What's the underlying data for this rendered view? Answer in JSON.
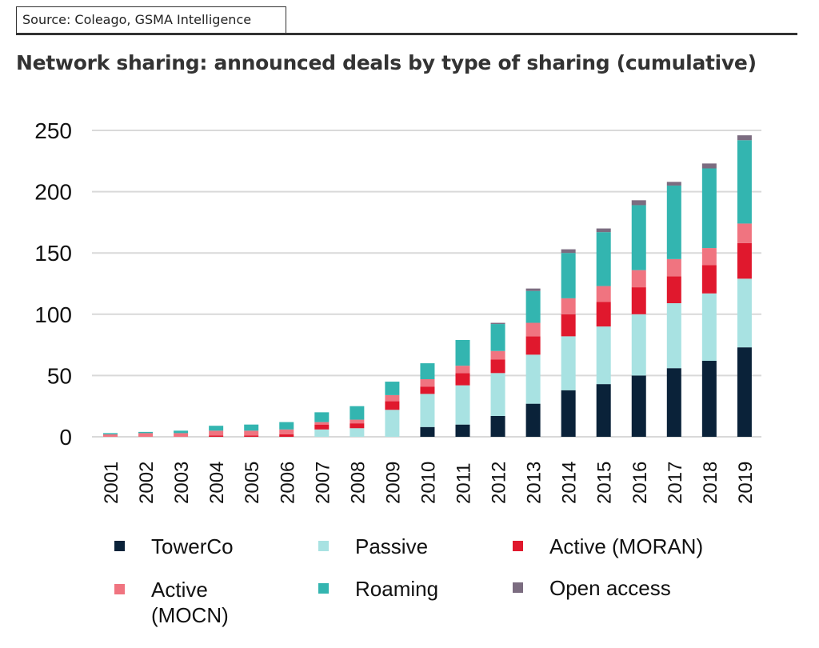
{
  "source": "Source: Coleago, GSMA Intelligence",
  "chart_data": {
    "type": "bar",
    "stacked": true,
    "title": "Network sharing: announced deals by type of sharing (cumulative)",
    "xlabel": "",
    "ylabel": "",
    "ylim": [
      0,
      250
    ],
    "yticks": [
      0,
      50,
      100,
      150,
      200,
      250
    ],
    "grid": true,
    "legend_position": "bottom",
    "categories": [
      "2001",
      "2002",
      "2003",
      "2004",
      "2005",
      "2006",
      "2007",
      "2008",
      "2009",
      "2010",
      "2011",
      "2012",
      "2013",
      "2014",
      "2015",
      "2016",
      "2017",
      "2018",
      "2019"
    ],
    "series": [
      {
        "name": "TowerCo",
        "color": "#0a2239",
        "values": [
          0,
          0,
          0,
          0,
          0,
          0,
          0,
          0,
          0,
          8,
          10,
          17,
          27,
          38,
          43,
          50,
          56,
          62,
          73
        ]
      },
      {
        "name": "Passive",
        "color": "#a8e2e2",
        "values": [
          0,
          0,
          0,
          0,
          0,
          0,
          6,
          7,
          22,
          27,
          32,
          35,
          40,
          44,
          47,
          50,
          53,
          55,
          56
        ]
      },
      {
        "name": "Active (MORAN)",
        "color": "#e0182d",
        "values": [
          0,
          0,
          0,
          1,
          1,
          2,
          4,
          4,
          7,
          6,
          10,
          11,
          15,
          18,
          20,
          22,
          22,
          23,
          29
        ]
      },
      {
        "name": "Active (MOCN)",
        "color": "#f07480",
        "values": [
          2,
          3,
          3,
          4,
          4,
          4,
          2,
          3,
          5,
          6,
          6,
          7,
          11,
          13,
          13,
          14,
          14,
          14,
          16
        ]
      },
      {
        "name": "Roaming",
        "color": "#33b5b0",
        "values": [
          1,
          1,
          2,
          4,
          5,
          6,
          8,
          11,
          11,
          13,
          21,
          22,
          26,
          37,
          44,
          53,
          60,
          65,
          68
        ]
      },
      {
        "name": "Open access",
        "color": "#7b6c80",
        "values": [
          0,
          0,
          0,
          0,
          0,
          0,
          0,
          0,
          0,
          0,
          0,
          1,
          2,
          3,
          3,
          4,
          3,
          4,
          4
        ]
      }
    ]
  },
  "legend": [
    {
      "label": "TowerCo",
      "color": "#0a2239"
    },
    {
      "label": "Passive",
      "color": "#a8e2e2"
    },
    {
      "label": "Active (MORAN)",
      "color": "#e0182d"
    },
    {
      "label": "Active (MOCN)",
      "color": "#f07480"
    },
    {
      "label": "Roaming",
      "color": "#33b5b0"
    },
    {
      "label": "Open access",
      "color": "#7b6c80"
    }
  ]
}
